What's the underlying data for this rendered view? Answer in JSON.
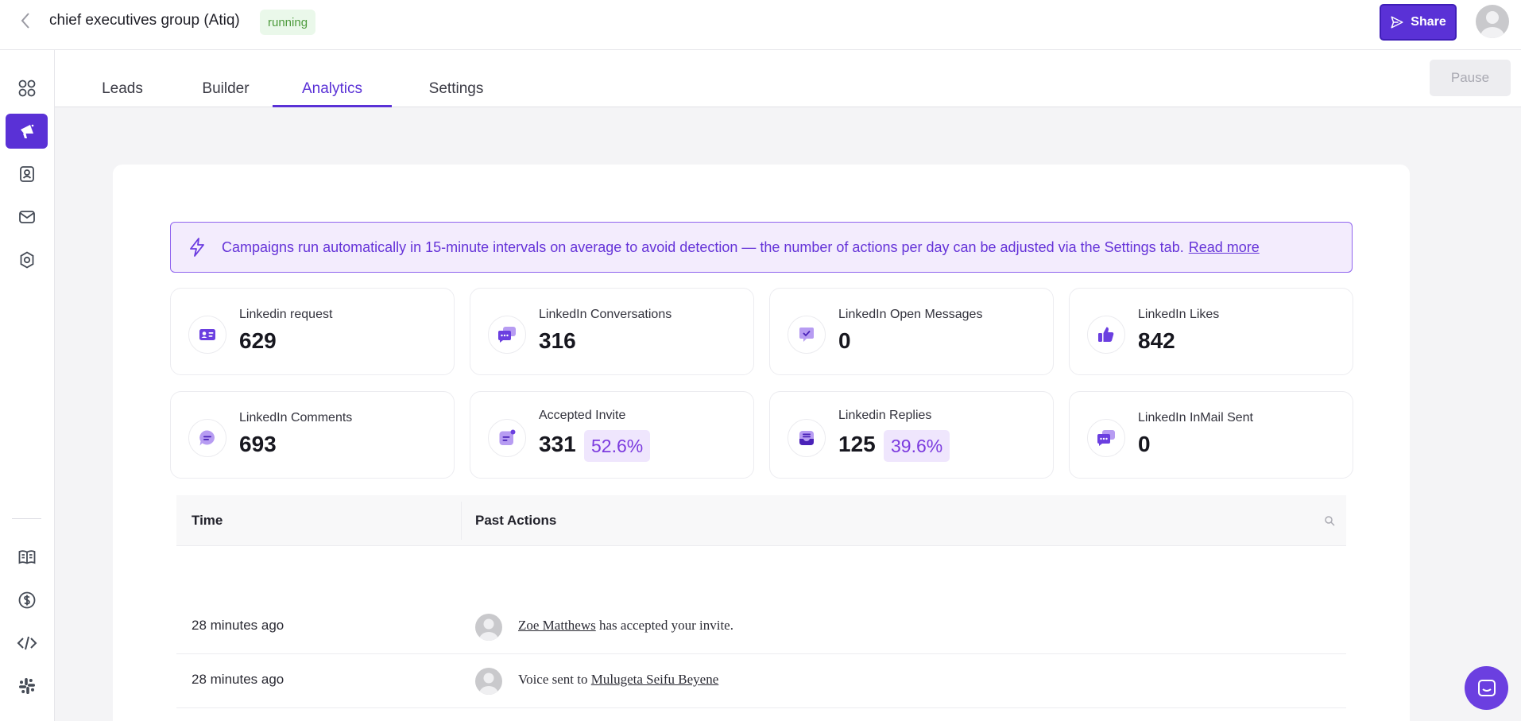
{
  "header": {
    "title": "chief executives group (Atiq)",
    "status": "running",
    "share_label": "Share"
  },
  "tabs": [
    {
      "label": "Leads"
    },
    {
      "label": "Builder"
    },
    {
      "label": "Analytics"
    },
    {
      "label": "Settings"
    }
  ],
  "pause_label": "Pause",
  "banner": {
    "text": "Campaigns run automatically in 15-minute intervals on average to avoid detection — the number of actions per day can be adjusted via the Settings tab.",
    "link": "Read more"
  },
  "stats": [
    {
      "label": "Linkedin request",
      "value": "629",
      "icon": "id-card-icon"
    },
    {
      "label": "LinkedIn Conversations",
      "value": "316",
      "icon": "chat-bubbles-icon"
    },
    {
      "label": "LinkedIn Open Messages",
      "value": "0",
      "icon": "message-check-icon"
    },
    {
      "label": "LinkedIn Likes",
      "value": "842",
      "icon": "thumbs-up-icon"
    },
    {
      "label": "LinkedIn Comments",
      "value": "693",
      "icon": "comment-icon"
    },
    {
      "label": "Accepted Invite",
      "value": "331",
      "pct": "52.6%",
      "icon": "message-dot-icon"
    },
    {
      "label": "Linkedin Replies",
      "value": "125",
      "pct": "39.6%",
      "icon": "inbox-icon"
    },
    {
      "label": "LinkedIn InMail Sent",
      "value": "0",
      "icon": "chat-bubbles-icon"
    }
  ],
  "table": {
    "headers": {
      "time": "Time",
      "actions": "Past Actions"
    },
    "rows": [
      {
        "time": "28 minutes ago",
        "name": "Zoe Matthews",
        "text": "has accepted your invite."
      },
      {
        "time": "28 minutes ago",
        "prefix": "Voice sent to",
        "name": "Mulugeta Seifu Beyene"
      }
    ]
  },
  "colors": {
    "accent": "#5a31d6",
    "status_bg": "#eaf8ea",
    "status_fg": "#4c9a3b",
    "banner_bg": "#f3ecfd"
  }
}
